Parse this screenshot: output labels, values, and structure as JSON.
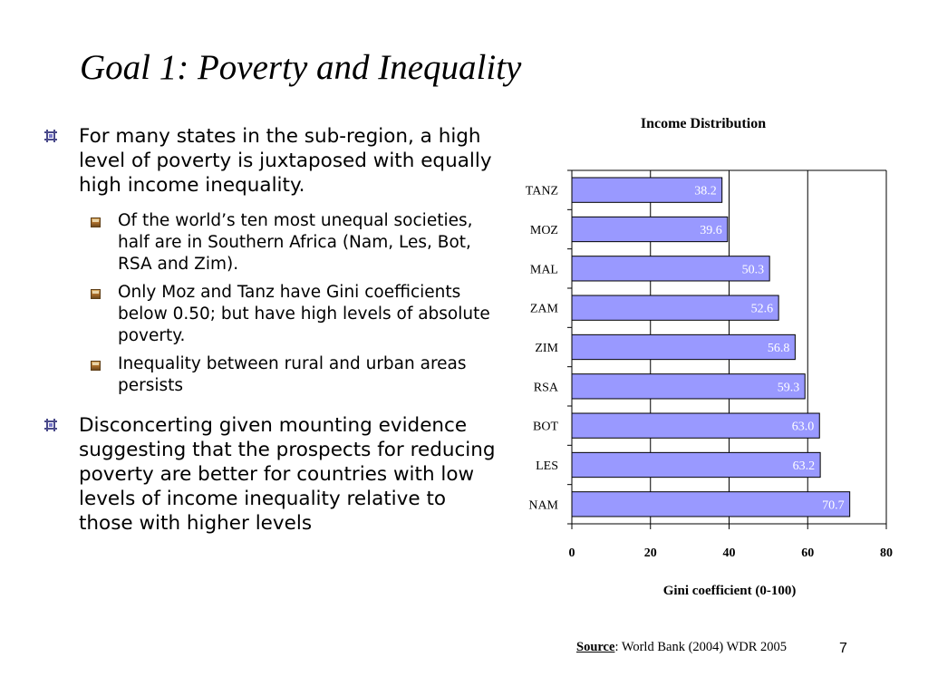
{
  "slide": {
    "title": "Goal 1: Poverty and Inequality",
    "bullets": [
      {
        "text": "For many states in the sub-region, a high level of poverty is juxtaposed with equally high income inequality.",
        "sub": [
          "Of the world’s ten most unequal societies, half are in Southern Africa (Nam, Les, Bot, RSA and Zim).",
          "Only Moz and Tanz have Gini coefficients below 0.50; but have high levels of absolute poverty.",
          "Inequality between rural and urban areas persists"
        ]
      },
      {
        "text": "Disconcerting given mounting evidence suggesting that the prospects for reducing poverty are better for countries with low levels of income inequality relative to those with higher levels",
        "sub": []
      }
    ],
    "source_label": "Source",
    "source_text": ": World Bank (2004) WDR 2005",
    "page_number": "7"
  },
  "chart_data": {
    "type": "bar",
    "orientation": "horizontal",
    "title": "Income Distribution",
    "xlabel": "Gini coefficient (0-100)",
    "ylabel": "",
    "categories": [
      "TANZ",
      "MOZ",
      "MAL",
      "ZAM",
      "ZIM",
      "RSA",
      "BOT",
      "LES",
      "NAM"
    ],
    "values": [
      38.2,
      39.6,
      50.3,
      52.6,
      56.8,
      59.3,
      63.0,
      63.2,
      70.7
    ],
    "value_labels": [
      "38.2",
      "39.6",
      "50.3",
      "52.6",
      "56.8",
      "59.3",
      "63.0",
      "63.2",
      "70.7"
    ],
    "xlim": [
      0,
      80
    ],
    "xticks": [
      "0",
      "20",
      "40",
      "60",
      "80"
    ],
    "grid": "vertical",
    "bar_color": "#9999ff",
    "bar_edge_color": "#000000",
    "label_color": "#ffffff"
  }
}
